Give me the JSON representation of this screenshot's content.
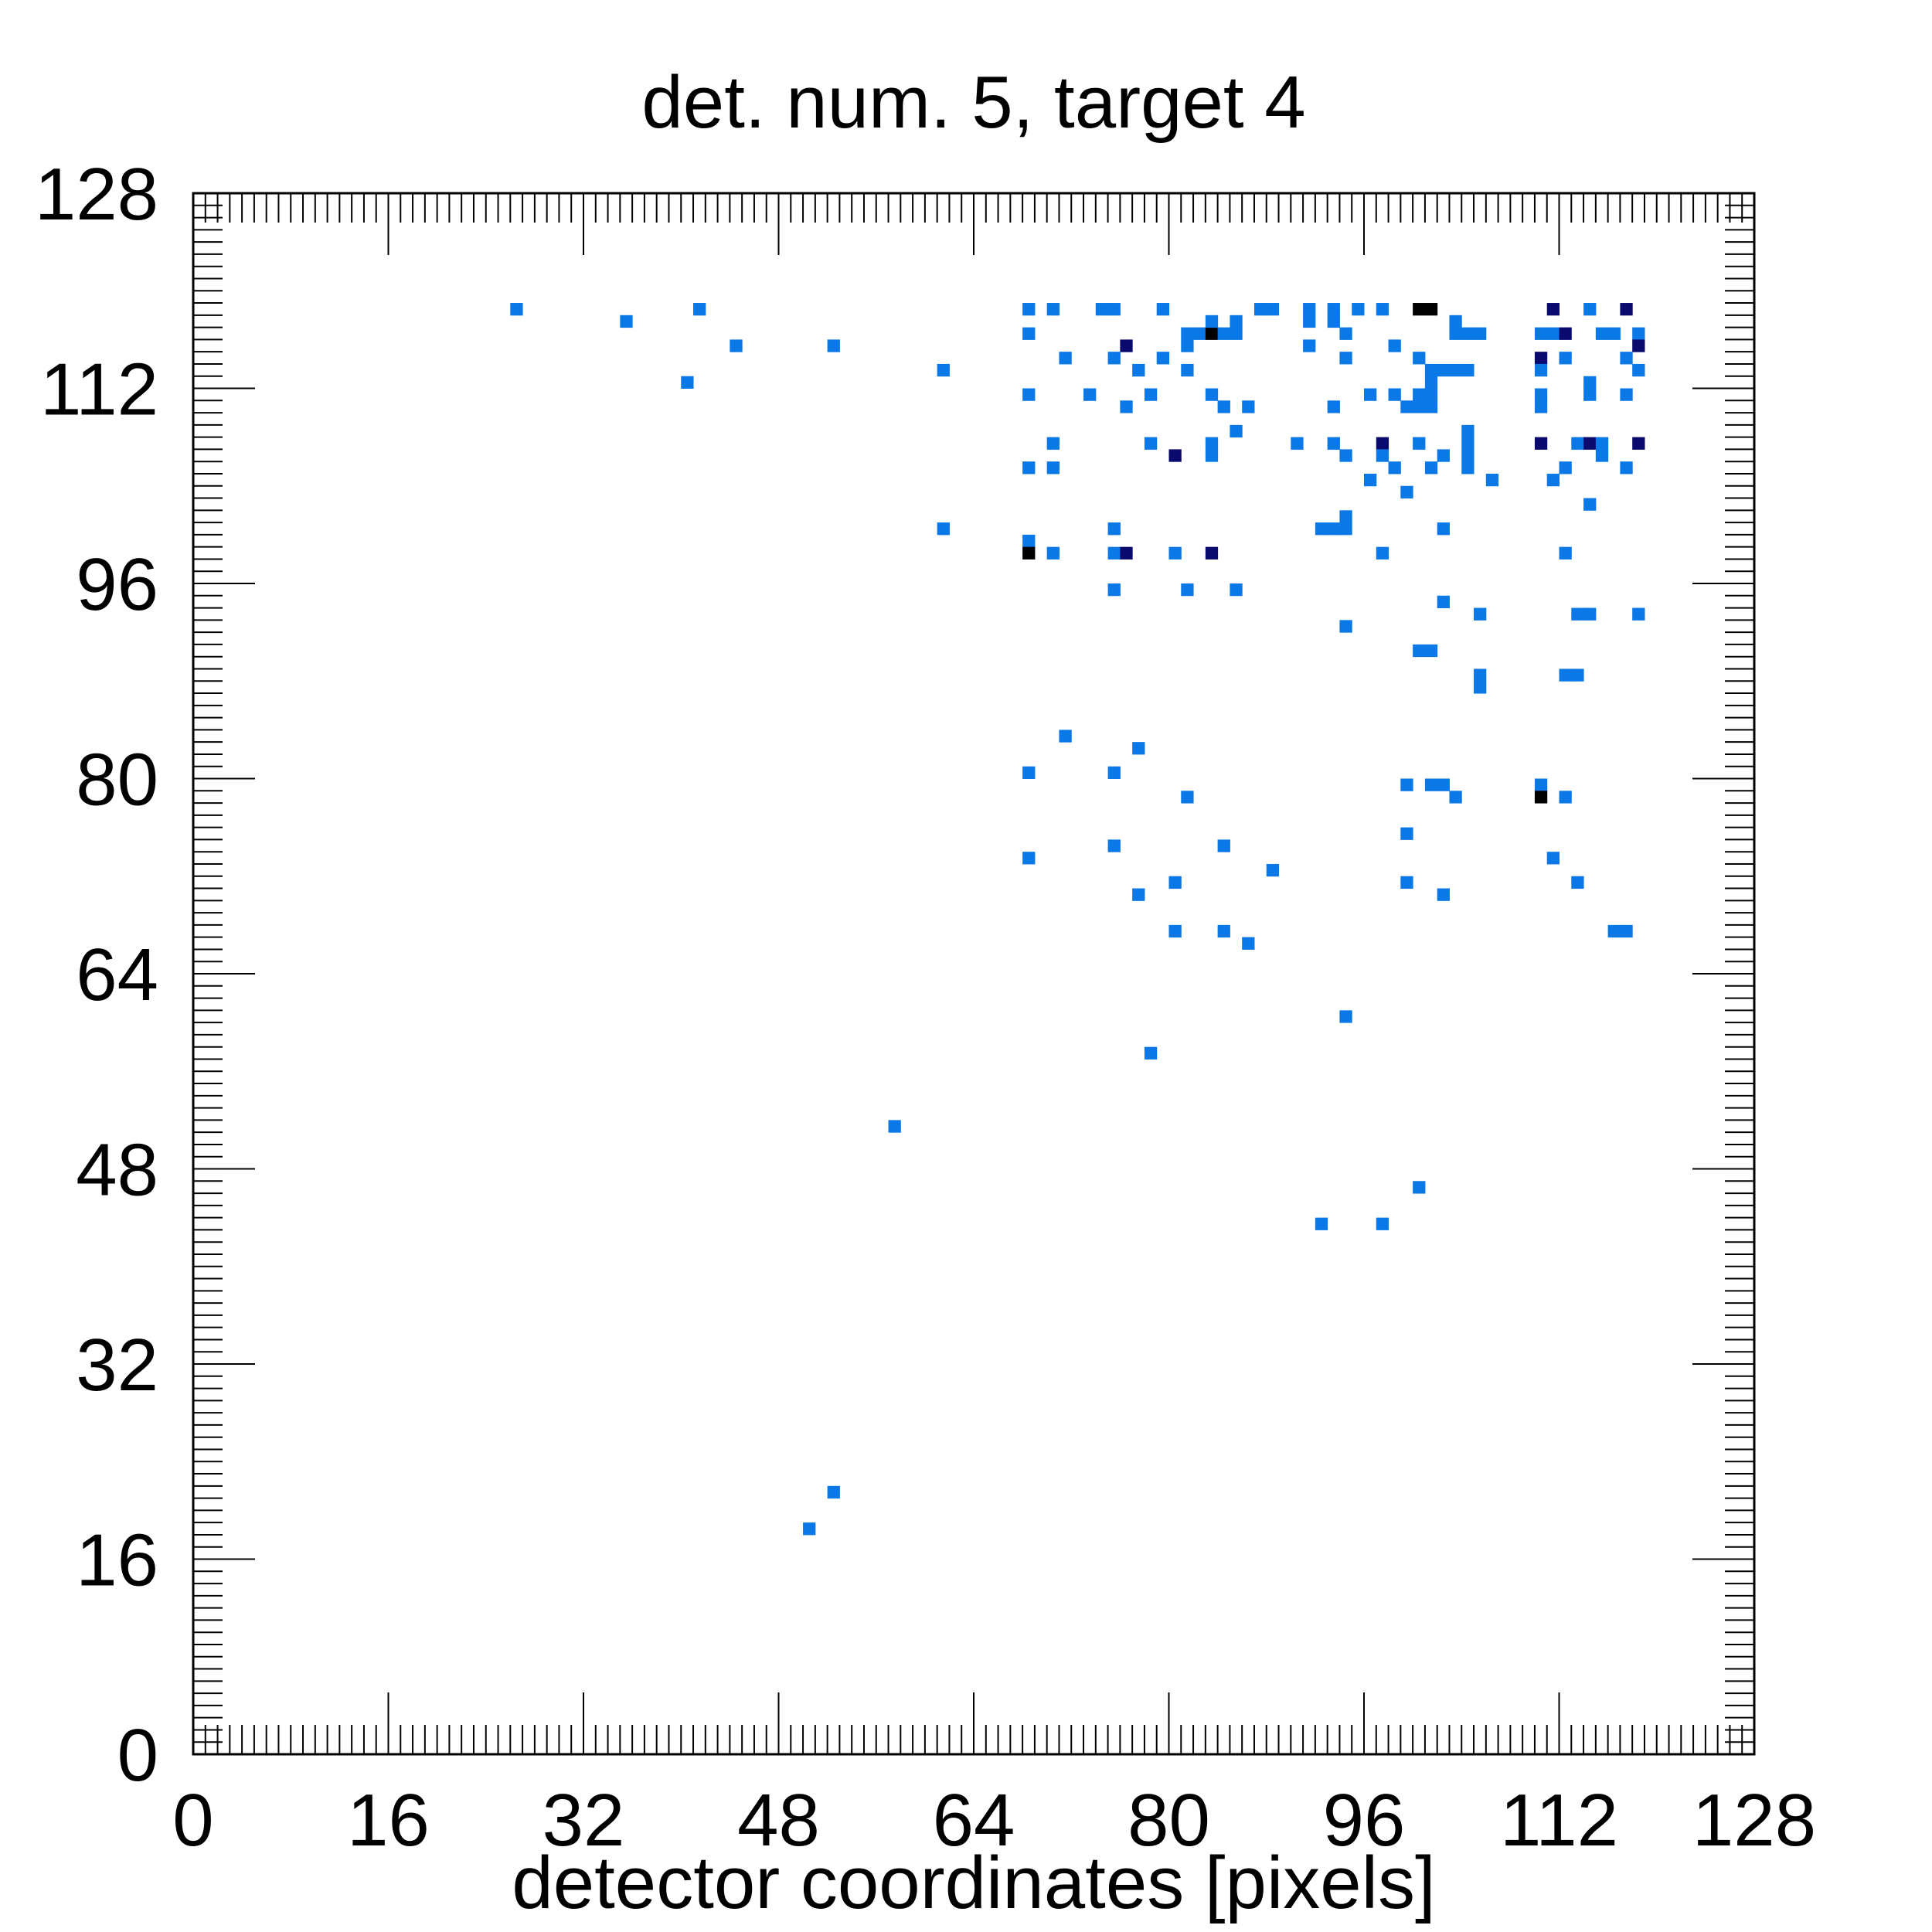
{
  "chart_data": {
    "type": "heatmap",
    "title": "det. num. 5, target 4",
    "xlabel": "detector coordinates [pixels]",
    "ylabel": "",
    "xlim": [
      0,
      128
    ],
    "ylim": [
      0,
      128
    ],
    "x_ticks": [
      "0",
      "16",
      "32",
      "48",
      "64",
      "80",
      "96",
      "112",
      "128"
    ],
    "y_ticks": [
      "0",
      "16",
      "32",
      "48",
      "64",
      "80",
      "96",
      "112",
      "128"
    ],
    "grid": false,
    "colors": {
      "low": "#0a78e6",
      "mid": "#0a0a6e",
      "high": "#000000"
    },
    "pixels": [
      [
        26,
        118,
        "low"
      ],
      [
        35,
        117,
        "low"
      ],
      [
        41,
        118,
        "low"
      ],
      [
        44,
        115,
        "low"
      ],
      [
        40,
        112,
        "low"
      ],
      [
        52,
        115,
        "low"
      ],
      [
        61,
        113,
        "low"
      ],
      [
        68,
        118,
        "low"
      ],
      [
        70,
        118,
        "low"
      ],
      [
        74,
        118,
        "low"
      ],
      [
        75,
        118,
        "low"
      ],
      [
        79,
        118,
        "low"
      ],
      [
        87,
        118,
        "low"
      ],
      [
        88,
        118,
        "low"
      ],
      [
        91,
        118,
        "low"
      ],
      [
        91,
        117,
        "low"
      ],
      [
        93,
        118,
        "low"
      ],
      [
        93,
        117,
        "low"
      ],
      [
        95,
        118,
        "low"
      ],
      [
        97,
        118,
        "low"
      ],
      [
        100,
        118,
        "high"
      ],
      [
        101,
        118,
        "high"
      ],
      [
        111,
        118,
        "mid"
      ],
      [
        114,
        118,
        "low"
      ],
      [
        117,
        118,
        "mid"
      ],
      [
        68,
        116,
        "low"
      ],
      [
        81,
        116,
        "low"
      ],
      [
        82,
        116,
        "low"
      ],
      [
        83,
        116,
        "high"
      ],
      [
        84,
        116,
        "low"
      ],
      [
        85,
        116,
        "low"
      ],
      [
        85,
        117,
        "low"
      ],
      [
        83,
        117,
        "low"
      ],
      [
        94,
        116,
        "low"
      ],
      [
        103,
        116,
        "low"
      ],
      [
        104,
        116,
        "low"
      ],
      [
        105,
        116,
        "low"
      ],
      [
        103,
        117,
        "low"
      ],
      [
        110,
        116,
        "low"
      ],
      [
        111,
        116,
        "low"
      ],
      [
        112,
        116,
        "mid"
      ],
      [
        115,
        116,
        "low"
      ],
      [
        116,
        116,
        "low"
      ],
      [
        118,
        116,
        "low"
      ],
      [
        76,
        115,
        "mid"
      ],
      [
        91,
        115,
        "low"
      ],
      [
        98,
        115,
        "low"
      ],
      [
        81,
        115,
        "low"
      ],
      [
        118,
        115,
        "mid"
      ],
      [
        71,
        114,
        "low"
      ],
      [
        75,
        114,
        "low"
      ],
      [
        79,
        114,
        "low"
      ],
      [
        94,
        114,
        "low"
      ],
      [
        100,
        114,
        "low"
      ],
      [
        110,
        114,
        "mid"
      ],
      [
        112,
        114,
        "low"
      ],
      [
        117,
        114,
        "low"
      ],
      [
        77,
        113,
        "low"
      ],
      [
        81,
        113,
        "low"
      ],
      [
        101,
        113,
        "low"
      ],
      [
        102,
        113,
        "low"
      ],
      [
        103,
        113,
        "low"
      ],
      [
        104,
        113,
        "low"
      ],
      [
        110,
        113,
        "low"
      ],
      [
        118,
        113,
        "low"
      ],
      [
        73,
        111,
        "low"
      ],
      [
        68,
        111,
        "low"
      ],
      [
        78,
        111,
        "low"
      ],
      [
        83,
        111,
        "low"
      ],
      [
        96,
        111,
        "low"
      ],
      [
        98,
        111,
        "low"
      ],
      [
        100,
        111,
        "low"
      ],
      [
        101,
        111,
        "low"
      ],
      [
        101,
        112,
        "low"
      ],
      [
        110,
        111,
        "low"
      ],
      [
        114,
        111,
        "low"
      ],
      [
        114,
        112,
        "low"
      ],
      [
        117,
        111,
        "low"
      ],
      [
        76,
        110,
        "low"
      ],
      [
        84,
        110,
        "low"
      ],
      [
        86,
        110,
        "low"
      ],
      [
        93,
        110,
        "low"
      ],
      [
        99,
        110,
        "low"
      ],
      [
        100,
        110,
        "low"
      ],
      [
        101,
        110,
        "low"
      ],
      [
        110,
        110,
        "low"
      ],
      [
        85,
        108,
        "low"
      ],
      [
        104,
        108,
        "low"
      ],
      [
        70,
        107,
        "low"
      ],
      [
        78,
        107,
        "low"
      ],
      [
        83,
        107,
        "low"
      ],
      [
        90,
        107,
        "low"
      ],
      [
        93,
        107,
        "low"
      ],
      [
        97,
        107,
        "mid"
      ],
      [
        100,
        107,
        "low"
      ],
      [
        104,
        107,
        "low"
      ],
      [
        110,
        107,
        "mid"
      ],
      [
        113,
        107,
        "low"
      ],
      [
        114,
        107,
        "mid"
      ],
      [
        115,
        107,
        "low"
      ],
      [
        118,
        107,
        "mid"
      ],
      [
        80,
        106,
        "mid"
      ],
      [
        83,
        106,
        "low"
      ],
      [
        94,
        106,
        "low"
      ],
      [
        97,
        106,
        "low"
      ],
      [
        102,
        106,
        "low"
      ],
      [
        104,
        106,
        "low"
      ],
      [
        115,
        106,
        "low"
      ],
      [
        68,
        105,
        "low"
      ],
      [
        70,
        105,
        "low"
      ],
      [
        98,
        105,
        "low"
      ],
      [
        101,
        105,
        "low"
      ],
      [
        104,
        105,
        "low"
      ],
      [
        112,
        105,
        "low"
      ],
      [
        117,
        105,
        "low"
      ],
      [
        96,
        104,
        "low"
      ],
      [
        106,
        104,
        "low"
      ],
      [
        111,
        104,
        "low"
      ],
      [
        99,
        103,
        "low"
      ],
      [
        114,
        102,
        "low"
      ],
      [
        61,
        100,
        "low"
      ],
      [
        75,
        100,
        "low"
      ],
      [
        93,
        100,
        "low"
      ],
      [
        94,
        100,
        "low"
      ],
      [
        92,
        100,
        "low"
      ],
      [
        94,
        101,
        "low"
      ],
      [
        102,
        100,
        "low"
      ],
      [
        68,
        99,
        "low"
      ],
      [
        68,
        98,
        "high"
      ],
      [
        70,
        98,
        "low"
      ],
      [
        75,
        98,
        "low"
      ],
      [
        76,
        98,
        "mid"
      ],
      [
        80,
        98,
        "low"
      ],
      [
        83,
        98,
        "mid"
      ],
      [
        97,
        98,
        "low"
      ],
      [
        112,
        98,
        "low"
      ],
      [
        75,
        95,
        "low"
      ],
      [
        81,
        95,
        "low"
      ],
      [
        85,
        95,
        "low"
      ],
      [
        102,
        94,
        "low"
      ],
      [
        105,
        93,
        "low"
      ],
      [
        113,
        93,
        "low"
      ],
      [
        114,
        93,
        "low"
      ],
      [
        118,
        93,
        "low"
      ],
      [
        94,
        92,
        "low"
      ],
      [
        100,
        90,
        "low"
      ],
      [
        101,
        90,
        "low"
      ],
      [
        105,
        88,
        "low"
      ],
      [
        105,
        87,
        "low"
      ],
      [
        112,
        88,
        "low"
      ],
      [
        113,
        88,
        "low"
      ],
      [
        71,
        83,
        "low"
      ],
      [
        77,
        82,
        "low"
      ],
      [
        68,
        80,
        "low"
      ],
      [
        75,
        80,
        "low"
      ],
      [
        99,
        79,
        "low"
      ],
      [
        101,
        79,
        "low"
      ],
      [
        102,
        79,
        "low"
      ],
      [
        110,
        79,
        "low"
      ],
      [
        110,
        78,
        "high"
      ],
      [
        81,
        78,
        "low"
      ],
      [
        103,
        78,
        "low"
      ],
      [
        112,
        78,
        "low"
      ],
      [
        99,
        75,
        "low"
      ],
      [
        75,
        74,
        "low"
      ],
      [
        84,
        74,
        "low"
      ],
      [
        68,
        73,
        "low"
      ],
      [
        111,
        73,
        "low"
      ],
      [
        88,
        72,
        "low"
      ],
      [
        80,
        71,
        "low"
      ],
      [
        99,
        71,
        "low"
      ],
      [
        113,
        71,
        "low"
      ],
      [
        77,
        70,
        "low"
      ],
      [
        102,
        70,
        "low"
      ],
      [
        80,
        67,
        "low"
      ],
      [
        84,
        67,
        "low"
      ],
      [
        86,
        66,
        "low"
      ],
      [
        116,
        67,
        "low"
      ],
      [
        117,
        67,
        "low"
      ],
      [
        94,
        60,
        "low"
      ],
      [
        78,
        57,
        "low"
      ],
      [
        57,
        51,
        "low"
      ],
      [
        100,
        46,
        "low"
      ],
      [
        92,
        43,
        "low"
      ],
      [
        97,
        43,
        "low"
      ],
      [
        52,
        21,
        "low"
      ],
      [
        50,
        18,
        "low"
      ]
    ]
  }
}
